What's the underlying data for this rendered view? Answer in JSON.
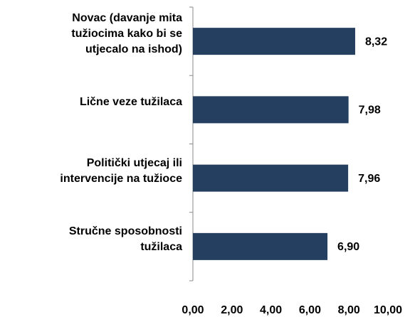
{
  "chart_data": {
    "type": "hbar",
    "categories": [
      "Novac (davanje mita\ntužiocima kako bi se\nutjecalo na ishod)",
      "Lične veze tužilaca",
      "Politički utjecaj ili\nintervencije na  tužioce",
      "Stručne sposobnosti\ntužilaca"
    ],
    "values": [
      8.32,
      7.98,
      7.96,
      6.9
    ],
    "value_labels": [
      "8,32",
      "7,98",
      "7,96",
      "6,90"
    ],
    "color": "#243f60",
    "xlim": [
      0,
      10
    ],
    "xticks": [
      {
        "value": 0,
        "label": "0,00"
      },
      {
        "value": 2,
        "label": "2,00"
      },
      {
        "value": 4,
        "label": "4,00"
      },
      {
        "value": 6,
        "label": "6,00"
      },
      {
        "value": 8,
        "label": "8,00"
      },
      {
        "value": 10,
        "label": "10,00"
      }
    ]
  }
}
